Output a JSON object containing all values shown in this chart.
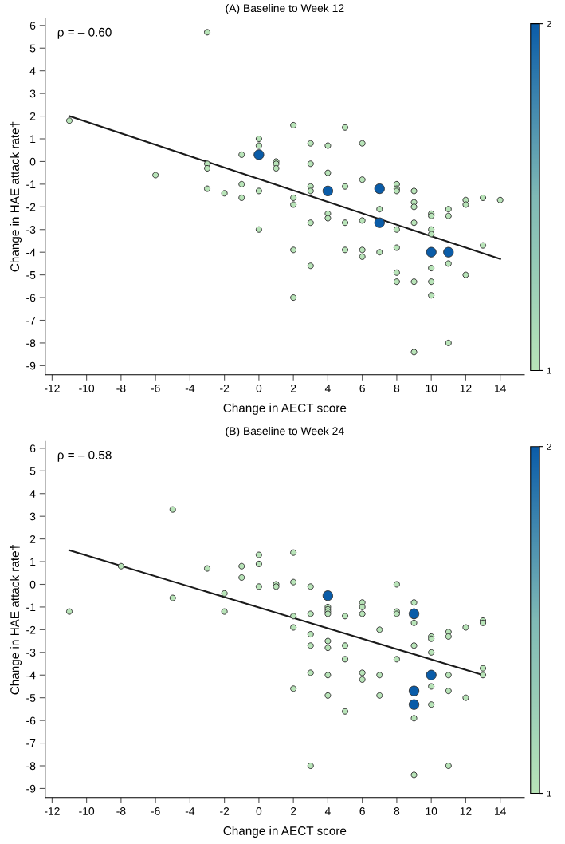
{
  "chart_data": [
    {
      "type": "scatter",
      "title": "(A) Baseline to Week 12",
      "xlabel": "Change in AECT score",
      "ylabel": "Change in HAE attack rate†",
      "xlim": [
        -12.4,
        15.4
      ],
      "xticks": [
        -12,
        -10,
        -8,
        -6,
        -4,
        -2,
        0,
        2,
        4,
        6,
        8,
        10,
        12,
        14
      ],
      "ylim": [
        -9.4,
        6.3
      ],
      "yticks": [
        -9,
        -8,
        -7,
        -6,
        -5,
        -4,
        -3,
        -2,
        -1,
        0,
        1,
        2,
        3,
        4,
        5,
        6
      ],
      "clim": [
        1,
        2
      ],
      "cticks": [
        1,
        2
      ],
      "grid": false,
      "legend": false,
      "annotations": [
        "ρ = – 0.60"
      ],
      "series": [
        {
          "marker": "circle",
          "x": [
            -11,
            -6,
            -3,
            -3,
            -3,
            -3,
            -2,
            -1,
            -1,
            -1,
            0,
            0,
            0,
            0,
            1,
            1,
            1,
            2,
            2,
            2,
            2,
            2,
            3,
            3,
            3,
            3,
            3,
            3,
            4,
            4,
            4,
            4,
            5,
            5,
            5,
            5,
            6,
            6,
            6,
            6,
            6,
            7,
            7,
            8,
            8,
            8,
            8,
            8,
            8,
            8,
            9,
            9,
            9,
            9,
            9,
            9,
            10,
            10,
            10,
            10,
            10,
            10,
            10,
            11,
            11,
            11,
            11,
            12,
            12,
            12,
            13,
            13,
            14,
            0,
            4,
            7,
            7,
            10,
            11
          ],
          "values": [
            1.8,
            -0.6,
            5.7,
            -0.1,
            -0.3,
            -1.2,
            -1.4,
            0.3,
            -1.0,
            -1.6,
            1.0,
            0.7,
            -1.3,
            -3.0,
            0.0,
            -0.1,
            -0.3,
            1.6,
            -1.6,
            -1.9,
            -3.9,
            -6.0,
            0.8,
            -0.1,
            -1.1,
            -1.3,
            -2.7,
            -4.6,
            0.7,
            -0.5,
            -2.3,
            -2.5,
            1.5,
            -1.1,
            -2.7,
            -3.9,
            0.8,
            -0.8,
            -2.6,
            -3.9,
            -4.2,
            -2.1,
            -4.0,
            -1.0,
            -1.2,
            -1.3,
            -3.0,
            -3.8,
            -4.9,
            -5.3,
            -1.3,
            -1.8,
            -2.0,
            -2.7,
            -5.3,
            -8.4,
            -2.3,
            -2.4,
            -3.0,
            -3.2,
            -4.7,
            -5.3,
            -5.9,
            -2.1,
            -2.4,
            -4.5,
            -8.0,
            -1.7,
            -1.9,
            -5.0,
            -1.6,
            -3.7,
            -1.7,
            0.3,
            -1.3,
            -1.2,
            -2.7,
            -4.0,
            -4.0
          ],
          "cvalues": [
            1,
            1,
            1,
            1,
            1,
            1,
            1,
            1,
            1,
            1,
            1,
            1,
            1,
            1,
            1,
            1,
            1,
            1,
            1,
            1,
            1,
            1,
            1,
            1,
            1,
            1,
            1,
            1,
            1,
            1,
            1,
            1,
            1,
            1,
            1,
            1,
            1,
            1,
            1,
            1,
            1,
            1,
            1,
            1,
            1,
            1,
            1,
            1,
            1,
            1,
            1,
            1,
            1,
            1,
            1,
            1,
            1,
            1,
            1,
            1,
            1,
            1,
            1,
            1,
            1,
            1,
            1,
            1,
            1,
            1,
            1,
            1,
            1,
            2,
            2,
            2,
            2,
            2,
            2
          ],
          "colors": [
            "#b8e4b8",
            "#b8e4b8",
            "#b8e4b8",
            "#b8e4b8",
            "#b8e4b8",
            "#b8e4b8",
            "#b8e4b8",
            "#b8e4b8",
            "#b8e4b8",
            "#b8e4b8",
            "#b8e4b8",
            "#b8e4b8",
            "#b8e4b8",
            "#b8e4b8",
            "#b8e4b8",
            "#b8e4b8",
            "#b8e4b8",
            "#b8e4b8",
            "#b8e4b8",
            "#b8e4b8",
            "#b8e4b8",
            "#b8e4b8",
            "#b8e4b8",
            "#b8e4b8",
            "#b8e4b8",
            "#b8e4b8",
            "#b8e4b8",
            "#b8e4b8",
            "#b8e4b8",
            "#b8e4b8",
            "#b8e4b8",
            "#b8e4b8",
            "#b8e4b8",
            "#b8e4b8",
            "#b8e4b8",
            "#b8e4b8",
            "#b8e4b8",
            "#b8e4b8",
            "#b8e4b8",
            "#b8e4b8",
            "#b8e4b8",
            "#b8e4b8",
            "#b8e4b8",
            "#b8e4b8",
            "#b8e4b8",
            "#b8e4b8",
            "#b8e4b8",
            "#b8e4b8",
            "#b8e4b8",
            "#b8e4b8",
            "#b8e4b8",
            "#b8e4b8",
            "#b8e4b8",
            "#b8e4b8",
            "#b8e4b8",
            "#b8e4b8",
            "#b8e4b8",
            "#b8e4b8",
            "#b8e4b8",
            "#b8e4b8",
            "#b8e4b8",
            "#b8e4b8",
            "#b8e4b8",
            "#b8e4b8",
            "#b8e4b8",
            "#b8e4b8",
            "#b8e4b8",
            "#b8e4b8",
            "#b8e4b8",
            "#b8e4b8",
            "#b8e4b8",
            "#b8e4b8",
            "#b8e4b8",
            "#0a5ca8",
            "#0a5ca8",
            "#0a5ca8",
            "#0a5ca8",
            "#0a5ca8",
            "#0a5ca8"
          ]
        },
        {
          "type": "line",
          "marker": "none",
          "color": "#1a1a1a",
          "x": [
            -11,
            14
          ],
          "values": [
            2.0,
            -4.3
          ]
        }
      ]
    },
    {
      "type": "scatter",
      "title": "(B) Baseline to Week 24",
      "xlabel": "Change in AECT score",
      "ylabel": "Change in HAE attack rate†",
      "xlim": [
        -12.4,
        15.4
      ],
      "xticks": [
        -12,
        -10,
        -8,
        -6,
        -4,
        -2,
        0,
        2,
        4,
        6,
        8,
        10,
        12,
        14
      ],
      "ylim": [
        -9.4,
        6.3
      ],
      "yticks": [
        -9,
        -8,
        -7,
        -6,
        -5,
        -4,
        -3,
        -2,
        -1,
        0,
        1,
        2,
        3,
        4,
        5,
        6
      ],
      "clim": [
        1,
        2
      ],
      "cticks": [
        1,
        2
      ],
      "grid": false,
      "legend": false,
      "annotations": [
        "ρ = – 0.58"
      ],
      "series": [
        {
          "marker": "circle",
          "x": [
            -11,
            -8,
            -5,
            -5,
            -3,
            -2,
            -2,
            -1,
            -1,
            0,
            0,
            0,
            1,
            1,
            2,
            2,
            2,
            2,
            2,
            3,
            3,
            3,
            3,
            3,
            3,
            4,
            4,
            4,
            4,
            4,
            4,
            4,
            4,
            5,
            5,
            5,
            5,
            6,
            6,
            6,
            6,
            6,
            7,
            7,
            7,
            8,
            8,
            8,
            8,
            9,
            9,
            9,
            9,
            9,
            9,
            9,
            10,
            10,
            10,
            10,
            10,
            11,
            11,
            11,
            11,
            11,
            12,
            12,
            13,
            13,
            13,
            13,
            4,
            9,
            9,
            9,
            10
          ],
          "values": [
            -1.2,
            0.8,
            3.3,
            -0.6,
            0.7,
            -0.4,
            -1.2,
            0.8,
            0.3,
            1.3,
            0.9,
            -0.1,
            0.0,
            -0.1,
            1.4,
            0.1,
            -1.4,
            -1.9,
            -4.6,
            -0.1,
            -1.3,
            -2.2,
            -2.7,
            -3.9,
            -8.0,
            -1.0,
            -1.1,
            -1.2,
            -1.3,
            -2.5,
            -2.8,
            -4.0,
            -4.9,
            -1.4,
            -2.7,
            -3.3,
            -5.6,
            -0.8,
            -1.0,
            -1.3,
            -3.9,
            -4.2,
            -2.0,
            -4.0,
            -4.9,
            0.0,
            -1.2,
            -1.3,
            -3.3,
            -0.8,
            -1.2,
            -1.4,
            -1.7,
            -2.7,
            -5.9,
            -8.4,
            -2.3,
            -2.4,
            -3.0,
            -4.5,
            -5.3,
            -2.1,
            -2.3,
            -4.0,
            -4.7,
            -8.0,
            -1.9,
            -5.0,
            -1.6,
            -1.7,
            -3.7,
            -4.0,
            -0.5,
            -1.3,
            -4.7,
            -5.3,
            -4.0
          ],
          "cvalues": [
            1,
            1,
            1,
            1,
            1,
            1,
            1,
            1,
            1,
            1,
            1,
            1,
            1,
            1,
            1,
            1,
            1,
            1,
            1,
            1,
            1,
            1,
            1,
            1,
            1,
            1,
            1,
            1,
            1,
            1,
            1,
            1,
            1,
            1,
            1,
            1,
            1,
            1,
            1,
            1,
            1,
            1,
            1,
            1,
            1,
            1,
            1,
            1,
            1,
            1,
            1,
            1,
            1,
            1,
            1,
            1,
            1,
            1,
            1,
            1,
            1,
            1,
            1,
            1,
            1,
            1,
            1,
            1,
            1,
            1,
            1,
            1,
            2,
            2,
            2,
            2,
            2
          ],
          "colors": [
            "#b8e4b8",
            "#b8e4b8",
            "#b8e4b8",
            "#b8e4b8",
            "#b8e4b8",
            "#b8e4b8",
            "#b8e4b8",
            "#b8e4b8",
            "#b8e4b8",
            "#b8e4b8",
            "#b8e4b8",
            "#b8e4b8",
            "#b8e4b8",
            "#b8e4b8",
            "#b8e4b8",
            "#b8e4b8",
            "#b8e4b8",
            "#b8e4b8",
            "#b8e4b8",
            "#b8e4b8",
            "#b8e4b8",
            "#b8e4b8",
            "#b8e4b8",
            "#b8e4b8",
            "#b8e4b8",
            "#b8e4b8",
            "#b8e4b8",
            "#b8e4b8",
            "#b8e4b8",
            "#b8e4b8",
            "#b8e4b8",
            "#b8e4b8",
            "#b8e4b8",
            "#b8e4b8",
            "#b8e4b8",
            "#b8e4b8",
            "#b8e4b8",
            "#b8e4b8",
            "#b8e4b8",
            "#b8e4b8",
            "#b8e4b8",
            "#b8e4b8",
            "#b8e4b8",
            "#b8e4b8",
            "#b8e4b8",
            "#b8e4b8",
            "#b8e4b8",
            "#b8e4b8",
            "#b8e4b8",
            "#b8e4b8",
            "#b8e4b8",
            "#b8e4b8",
            "#b8e4b8",
            "#b8e4b8",
            "#b8e4b8",
            "#b8e4b8",
            "#b8e4b8",
            "#b8e4b8",
            "#b8e4b8",
            "#b8e4b8",
            "#b8e4b8",
            "#b8e4b8",
            "#b8e4b8",
            "#b8e4b8",
            "#b8e4b8",
            "#b8e4b8",
            "#b8e4b8",
            "#b8e4b8",
            "#b8e4b8",
            "#b8e4b8",
            "#b8e4b8",
            "#b8e4b8",
            "#0a5ca8",
            "#0a5ca8",
            "#0a5ca8",
            "#0a5ca8",
            "#0a5ca8"
          ]
        },
        {
          "type": "line",
          "marker": "none",
          "color": "#1a1a1a",
          "x": [
            -11,
            13
          ],
          "values": [
            1.5,
            -4.0
          ]
        }
      ]
    }
  ]
}
